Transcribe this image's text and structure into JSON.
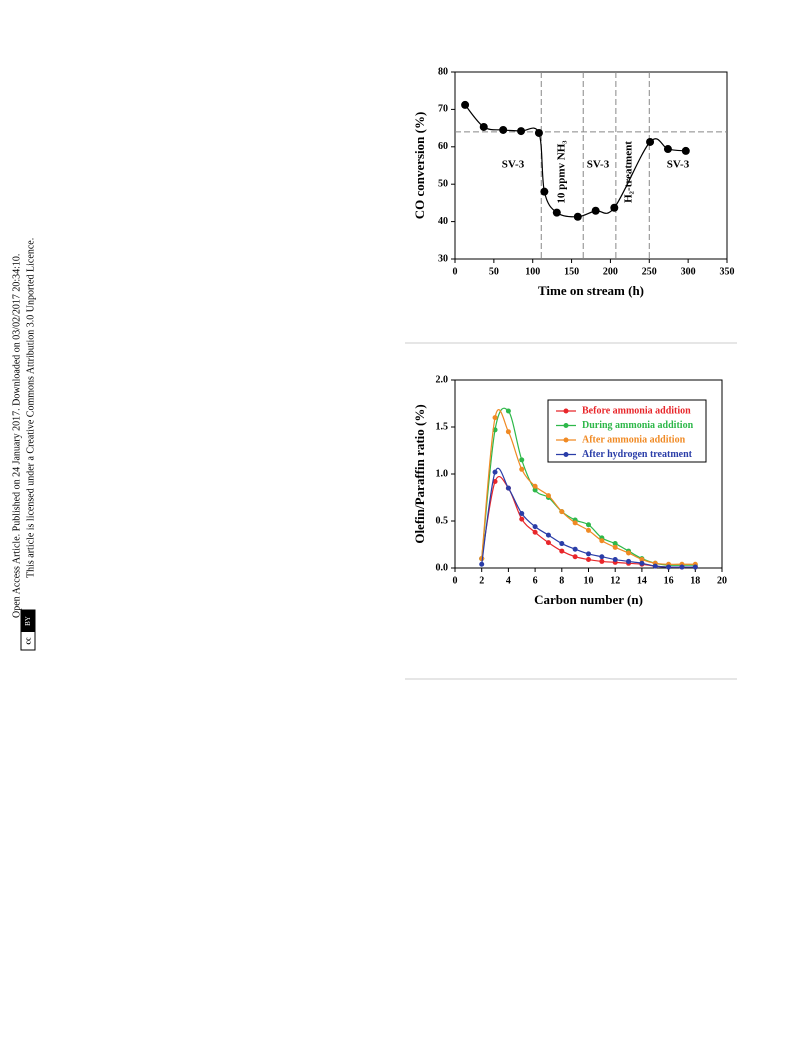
{
  "sidebar": {
    "line1": "Open Access Article. Published on 24 January 2017. Downloaded on 03/02/2017 20:34:10.",
    "line2": "This article is licensed under a Creative Commons Attribution 3.0 Unported Licence.",
    "badge_left": "cc",
    "badge_right": "BY"
  },
  "chart_data": [
    {
      "type": "line",
      "x_label": "Time on stream (h)",
      "y_label": "CO conversion (%)",
      "x": [
        13,
        37,
        62,
        85,
        108,
        115,
        131,
        158,
        181,
        205,
        251,
        274,
        297
      ],
      "series": [
        {
          "color": "#000000",
          "values": [
            71.2,
            65.3,
            64.5,
            64.2,
            63.7,
            48,
            42.4,
            41.3,
            42.9,
            43.7,
            61.3,
            59.4,
            58.9
          ]
        }
      ],
      "xlim": [
        0,
        350
      ],
      "xticks": [
        0,
        50,
        100,
        150,
        200,
        250,
        300,
        350
      ],
      "ylim": [
        30,
        80
      ],
      "yticks": [
        30,
        40,
        50,
        60,
        70,
        80
      ],
      "hlines": [
        64
      ],
      "vlines": [
        111,
        165,
        207,
        250
      ],
      "annotations": [
        "SV-3",
        "10 ppmv NH₃",
        "SV-3",
        "H₂-treatment",
        "SV-3"
      ]
    },
    {
      "type": "line",
      "x_label": "Carbon number (n)",
      "y_label": "Olefin/Paraffin ratio (%)",
      "x": [
        2,
        3,
        4,
        5,
        6,
        7,
        8,
        9,
        10,
        11,
        12,
        13,
        14,
        15,
        16,
        17,
        18
      ],
      "series": [
        {
          "name": "Before ammonia addition",
          "color": "#e8262a",
          "values": [
            0.1,
            0.92,
            0.85,
            0.52,
            0.38,
            0.27,
            0.18,
            0.12,
            0.09,
            0.07,
            0.06,
            0.05,
            0.04,
            0.02,
            0.01,
            0.01,
            0.01
          ]
        },
        {
          "name": "During ammonia addition",
          "color": "#2eb84a",
          "values": [
            0.1,
            1.47,
            1.67,
            1.15,
            0.83,
            0.75,
            0.6,
            0.51,
            0.46,
            0.32,
            0.26,
            0.18,
            0.1,
            0.05,
            0.03,
            0.03,
            0.03
          ]
        },
        {
          "name": "After ammonia addition",
          "color": "#f08a24",
          "values": [
            0.1,
            1.6,
            1.45,
            1.05,
            0.87,
            0.77,
            0.6,
            0.48,
            0.4,
            0.29,
            0.22,
            0.16,
            0.09,
            0.05,
            0.04,
            0.04,
            0.04
          ]
        },
        {
          "name": "After hydrogen treatment",
          "color": "#2a3da8",
          "values": [
            0.04,
            1.02,
            0.85,
            0.58,
            0.44,
            0.35,
            0.26,
            0.2,
            0.15,
            0.12,
            0.09,
            0.07,
            0.05,
            0.02,
            0.01,
            0.01,
            0.01
          ]
        }
      ],
      "xlim": [
        0,
        20
      ],
      "xticks": [
        0,
        2,
        4,
        6,
        8,
        10,
        12,
        14,
        16,
        18,
        20
      ],
      "ylim": [
        0,
        2
      ],
      "yticks": [
        {
          "value": 0,
          "label": "0.0"
        },
        {
          "value": 0.5,
          "label": "0.5"
        },
        {
          "value": 1,
          "label": "1.0"
        },
        {
          "value": 1.5,
          "label": "1.5"
        },
        {
          "value": 2,
          "label": "2.0"
        }
      ],
      "legend": "upper right"
    }
  ]
}
